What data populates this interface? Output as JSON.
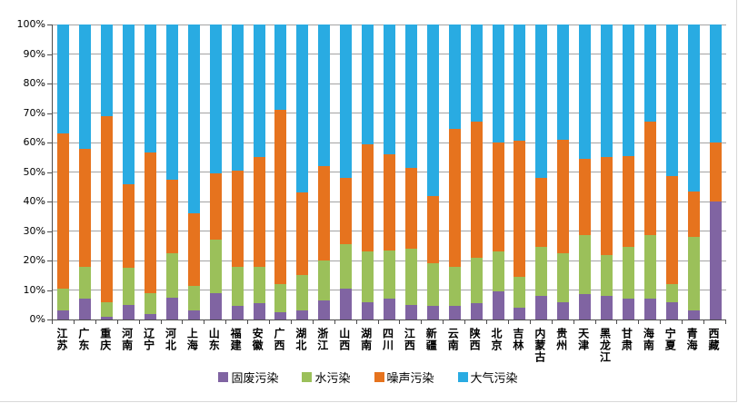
{
  "chart_data": {
    "type": "bar",
    "variant": "stacked-percent",
    "title": "",
    "xlabel": "",
    "ylabel": "",
    "grid": true,
    "legend_position": "bottom",
    "y_axis": {
      "min": 0,
      "max": 100,
      "step": 10,
      "tick_labels": [
        "0%",
        "10%",
        "20%",
        "30%",
        "40%",
        "50%",
        "60%",
        "70%",
        "80%",
        "90%",
        "100%"
      ]
    },
    "categories": [
      "江苏",
      "广东",
      "重庆",
      "河南",
      "辽宁",
      "河北",
      "上海",
      "山东",
      "福建",
      "安徽",
      "广西",
      "湖北",
      "浙江",
      "山西",
      "湖南",
      "四川",
      "江西",
      "新疆",
      "云南",
      "陕西",
      "北京",
      "吉林",
      "内蒙古",
      "贵州",
      "天津",
      "黑龙江",
      "甘肃",
      "海南",
      "宁夏",
      "青海",
      "西藏"
    ],
    "series": [
      {
        "name": "固废污染",
        "color": "#8064A2",
        "values": [
          3,
          7,
          1,
          5,
          2,
          7.5,
          3,
          9,
          4.5,
          5.5,
          2.5,
          3,
          6.5,
          10.5,
          6,
          7,
          5,
          4.5,
          4.5,
          5.5,
          9.5,
          4,
          8,
          6,
          8.5,
          8,
          7,
          7,
          6,
          3,
          40
        ]
      },
      {
        "name": "水污染",
        "color": "#9BC05A",
        "values": [
          7.5,
          11,
          5,
          12.5,
          7,
          15,
          8.5,
          18,
          13.5,
          12.5,
          9.5,
          12,
          13.5,
          15,
          17,
          16.5,
          19,
          14.5,
          13.5,
          15.5,
          13.5,
          10.5,
          16.5,
          16.5,
          20,
          14,
          17.5,
          21.5,
          6,
          25,
          0
        ]
      },
      {
        "name": "噪声污染",
        "color": "#E6731E",
        "values": [
          52.5,
          40,
          63,
          28.5,
          47.5,
          25,
          24.5,
          22.5,
          32.5,
          37,
          59,
          28,
          32,
          22.5,
          36.5,
          32.5,
          27.5,
          23,
          46.5,
          46,
          37,
          46,
          23.5,
          38.5,
          26,
          33,
          31,
          38.5,
          36.5,
          15.5,
          20
        ]
      },
      {
        "name": "大气污染",
        "color": "#29ABE2",
        "values": [
          37,
          42,
          31,
          54,
          43.5,
          52.5,
          64,
          50.5,
          49.5,
          45,
          29,
          57,
          48,
          52,
          40.5,
          44,
          48.5,
          58,
          35.5,
          33,
          40,
          39.5,
          52,
          39,
          45.5,
          45,
          44.5,
          33,
          51.5,
          56.5,
          40
        ]
      }
    ],
    "colors": {
      "gridline": "#a3a3a3",
      "axis": "#4d4d4d",
      "background": "#ffffff"
    }
  }
}
